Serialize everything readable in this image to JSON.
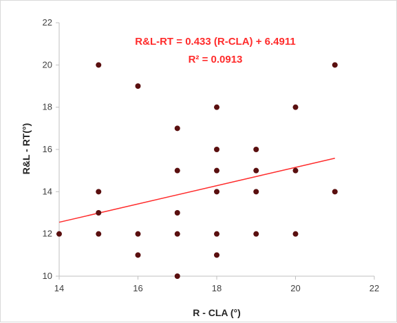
{
  "chart_data": {
    "type": "scatter",
    "title": "",
    "xlabel": "R - CLA (°)",
    "ylabel": "R&L - RT(°)",
    "xlim": [
      14,
      22
    ],
    "ylim": [
      10,
      22
    ],
    "xticks": [
      14,
      16,
      18,
      20,
      22
    ],
    "yticks": [
      10,
      12,
      14,
      16,
      18,
      20,
      22
    ],
    "grid": false,
    "series": [
      {
        "marker_color": "#5a0f0f",
        "points": [
          [
            14,
            12
          ],
          [
            15,
            20
          ],
          [
            15,
            14
          ],
          [
            15,
            13
          ],
          [
            15,
            12
          ],
          [
            16,
            19
          ],
          [
            16,
            12
          ],
          [
            16,
            11
          ],
          [
            17,
            17
          ],
          [
            17,
            15
          ],
          [
            17,
            13
          ],
          [
            17,
            12
          ],
          [
            17,
            10
          ],
          [
            18,
            18
          ],
          [
            18,
            16
          ],
          [
            18,
            15
          ],
          [
            18,
            14
          ],
          [
            18,
            12
          ],
          [
            18,
            11
          ],
          [
            19,
            16
          ],
          [
            19,
            15
          ],
          [
            19,
            14
          ],
          [
            19,
            12
          ],
          [
            20,
            18
          ],
          [
            20,
            15
          ],
          [
            20,
            12
          ],
          [
            21,
            20
          ],
          [
            21,
            14
          ]
        ]
      }
    ],
    "trendline": {
      "slope": 0.433,
      "intercept": 6.4911,
      "x_range": [
        14,
        21
      ],
      "color": "#ff2b2b"
    },
    "annotations": {
      "equation": "R&L-RT = 0.433 (R-CLA) + 6.4911",
      "r2": "R² = 0.0913"
    }
  }
}
